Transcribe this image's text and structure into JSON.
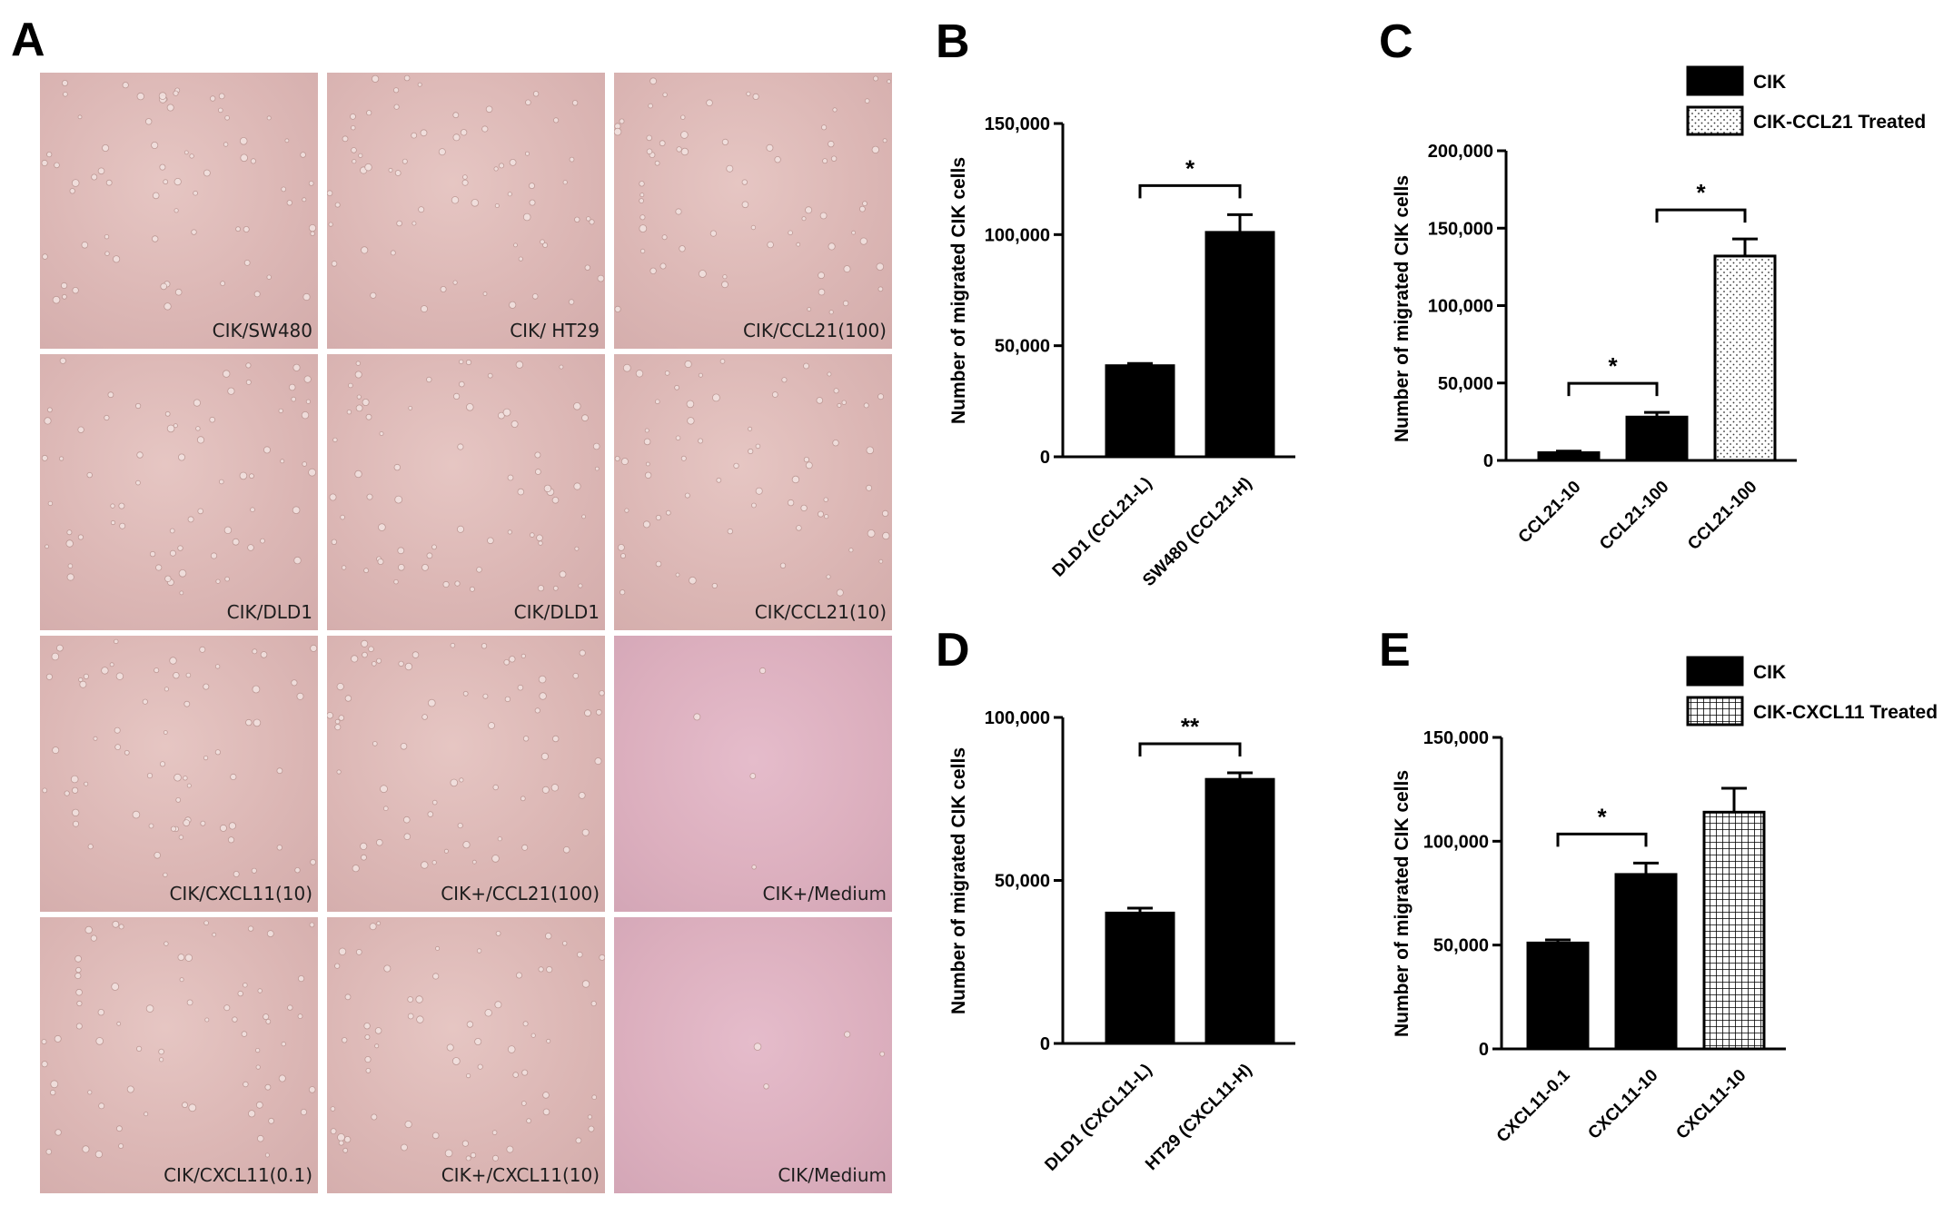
{
  "panels": {
    "a": "A",
    "b": "B",
    "c": "C",
    "d": "D",
    "e": "E"
  },
  "micrographs": [
    {
      "label": "CIK/SW480",
      "medium": false
    },
    {
      "label": "CIK/ HT29",
      "medium": false
    },
    {
      "label": "CIK/CCL21(100)",
      "medium": false
    },
    {
      "label": "CIK/DLD1",
      "medium": false
    },
    {
      "label": "CIK/DLD1",
      "medium": false
    },
    {
      "label": "CIK/CCL21(10)",
      "medium": false
    },
    {
      "label": "CIK/CXCL11(10)",
      "medium": false
    },
    {
      "label": "CIK+/CCL21(100)",
      "medium": false
    },
    {
      "label": "CIK+/Medium",
      "medium": true
    },
    {
      "label": "CIK/CXCL11(0.1)",
      "medium": false
    },
    {
      "label": "CIK+/CXCL11(10)",
      "medium": false
    },
    {
      "label": "CIK/Medium",
      "medium": true
    }
  ],
  "chart_data": [
    {
      "panel": "B",
      "type": "bar",
      "ylabel": "Number of migrated CIK cells",
      "ylim": [
        0,
        150000
      ],
      "yticks": [
        0,
        50000,
        100000,
        150000
      ],
      "ytick_labels": [
        "0",
        "50,000",
        "100,000",
        "150,000"
      ],
      "categories": [
        "DLD1 (CCL21-L)",
        "SW480 (CCL21-H)"
      ],
      "values": [
        41000,
        101000
      ],
      "errors": [
        1000,
        8000
      ],
      "fills": [
        "solid",
        "solid"
      ],
      "significance": [
        {
          "from": 0,
          "to": 1,
          "label": "*"
        }
      ]
    },
    {
      "panel": "C",
      "type": "bar",
      "ylabel": "Number of migrated CIK cells",
      "ylim": [
        0,
        200000
      ],
      "yticks": [
        0,
        50000,
        100000,
        150000,
        200000
      ],
      "ytick_labels": [
        "0",
        "50,000",
        "100,000",
        "150,000",
        "200,000"
      ],
      "categories": [
        "CCL21-10",
        "CCL21-100",
        "CCL21-100"
      ],
      "values": [
        5000,
        28000,
        132000
      ],
      "errors": [
        1000,
        3000,
        11000
      ],
      "fills": [
        "solid",
        "solid",
        "dots"
      ],
      "legend": [
        {
          "name": "CIK",
          "fill": "solid"
        },
        {
          "name": "CIK-CCL21 Treated",
          "fill": "dots"
        }
      ],
      "legend_position": "top-right",
      "significance": [
        {
          "from": 0,
          "to": 1,
          "label": "*"
        },
        {
          "from": 1,
          "to": 2,
          "label": "*"
        }
      ]
    },
    {
      "panel": "D",
      "type": "bar",
      "ylabel": "Number of migrated CIK cells",
      "ylim": [
        0,
        100000
      ],
      "yticks": [
        0,
        50000,
        100000
      ],
      "ytick_labels": [
        "0",
        "50,000",
        "100,000"
      ],
      "categories": [
        "DLD1 (CXCL11-L)",
        "HT29 (CXCL11-H)"
      ],
      "values": [
        40000,
        81000
      ],
      "errors": [
        1500,
        2000
      ],
      "fills": [
        "solid",
        "solid"
      ],
      "significance": [
        {
          "from": 0,
          "to": 1,
          "label": "**"
        }
      ]
    },
    {
      "panel": "E",
      "type": "bar",
      "ylabel": "Number of migrated CIK cells",
      "ylim": [
        0,
        150000
      ],
      "yticks": [
        0,
        50000,
        100000,
        150000
      ],
      "ytick_labels": [
        "0",
        "50,000",
        "100,000",
        "150,000"
      ],
      "categories": [
        "CXCL11-0.1",
        "CXCL11-10",
        "CXCL11-10"
      ],
      "values": [
        51000,
        84000,
        114000
      ],
      "errors": [
        1500,
        5500,
        11500
      ],
      "fills": [
        "solid",
        "solid",
        "grid"
      ],
      "legend": [
        {
          "name": "CIK",
          "fill": "solid"
        },
        {
          "name": "CIK-CXCL11 Treated",
          "fill": "grid"
        }
      ],
      "legend_position": "top-right",
      "significance": [
        {
          "from": 0,
          "to": 1,
          "label": "*"
        }
      ]
    }
  ]
}
